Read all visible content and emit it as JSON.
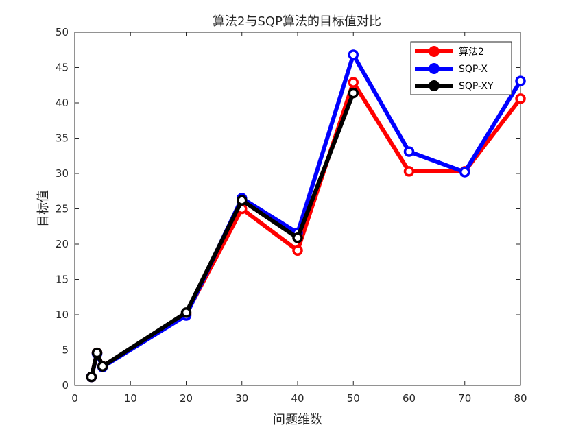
{
  "chart_data": {
    "type": "line",
    "title": "算法2与SQP算法的目标值对比",
    "xlabel": "问题维数",
    "ylabel": "目标值",
    "xlim": [
      0,
      80
    ],
    "ylim": [
      0,
      50
    ],
    "xticks": [
      0,
      10,
      20,
      30,
      40,
      50,
      60,
      70,
      80
    ],
    "yticks": [
      0,
      5,
      10,
      15,
      20,
      25,
      30,
      35,
      40,
      45,
      50
    ],
    "grid": false,
    "legend_position": "top-right",
    "series": [
      {
        "name": "算法2",
        "color": "#ff0000",
        "points": [
          [
            3,
            1.2
          ],
          [
            4,
            4.6
          ],
          [
            5,
            2.7
          ],
          [
            20,
            10.1
          ],
          [
            30,
            25.0
          ],
          [
            40,
            19.1
          ],
          [
            50,
            42.9
          ],
          [
            60,
            30.3
          ],
          [
            70,
            30.3
          ],
          [
            80,
            40.6
          ]
        ]
      },
      {
        "name": "SQP-X",
        "color": "#0000ff",
        "points": [
          [
            3,
            1.2
          ],
          [
            4,
            4.5
          ],
          [
            5,
            2.6
          ],
          [
            20,
            9.9
          ],
          [
            30,
            26.5
          ],
          [
            40,
            21.6
          ],
          [
            50,
            46.8
          ],
          [
            60,
            33.1
          ],
          [
            70,
            30.2
          ],
          [
            80,
            43.1
          ]
        ]
      },
      {
        "name": "SQP-XY",
        "color": "#000000",
        "points": [
          [
            3,
            1.2
          ],
          [
            4,
            4.6
          ],
          [
            5,
            2.7
          ],
          [
            20,
            10.3
          ],
          [
            30,
            26.2
          ],
          [
            40,
            20.9
          ],
          [
            50,
            41.4
          ]
        ]
      }
    ]
  }
}
